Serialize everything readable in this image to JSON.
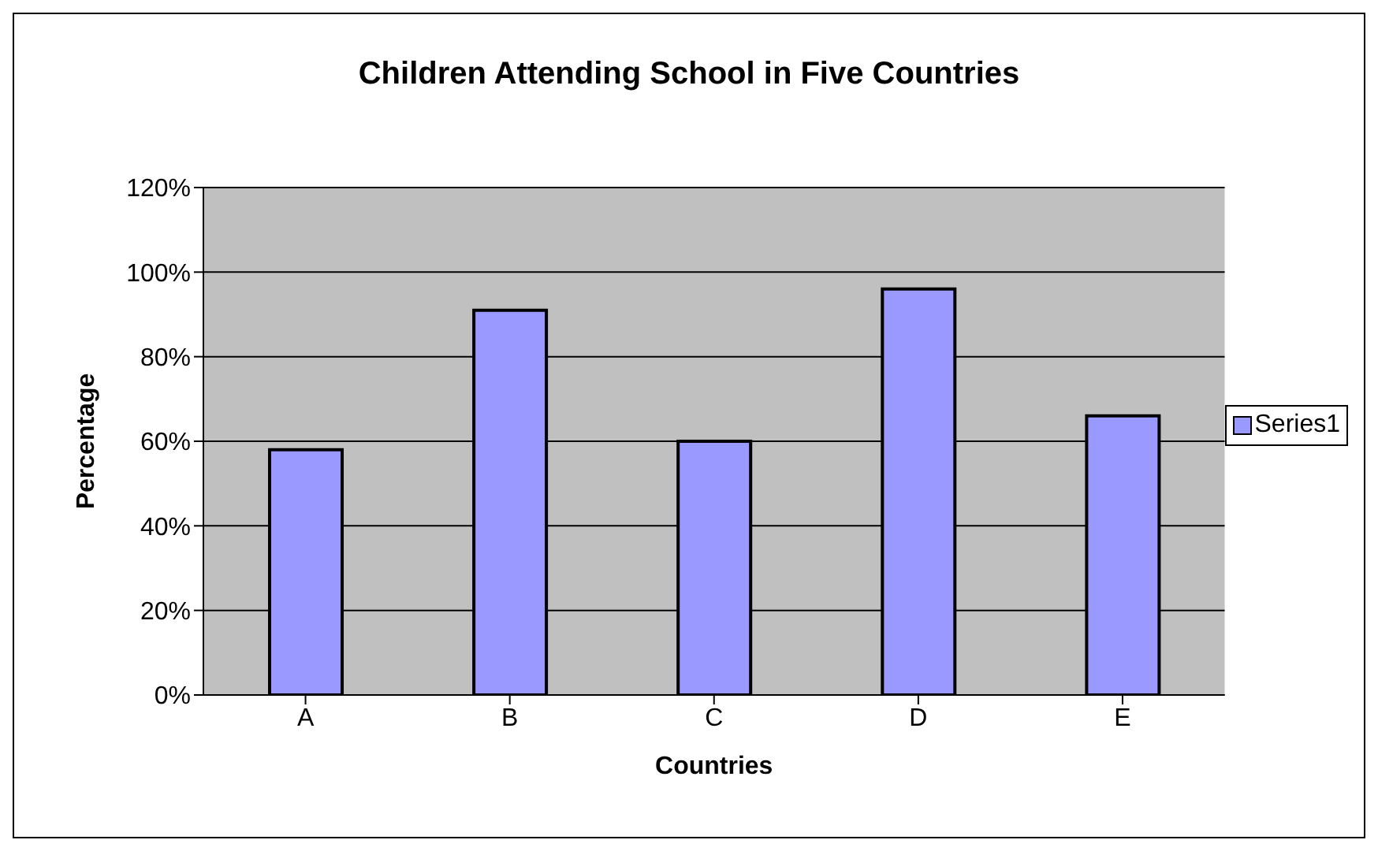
{
  "chart_data": {
    "type": "bar",
    "title": "Children Attending School in Five Countries",
    "xlabel": "Countries",
    "ylabel": "Percentage",
    "categories": [
      "A",
      "B",
      "C",
      "D",
      "E"
    ],
    "series": [
      {
        "name": "Series1",
        "color": "#9999ff",
        "values": [
          58,
          91,
          60,
          96,
          66
        ]
      }
    ],
    "ylim": [
      0,
      120
    ],
    "yticks": [
      {
        "value": 0,
        "label": "0%"
      },
      {
        "value": 20,
        "label": "20%"
      },
      {
        "value": 40,
        "label": "40%"
      },
      {
        "value": 60,
        "label": "60%"
      },
      {
        "value": 80,
        "label": "80%"
      },
      {
        "value": 100,
        "label": "100%"
      },
      {
        "value": 120,
        "label": "120%"
      }
    ],
    "grid": "y",
    "legend": "right"
  }
}
